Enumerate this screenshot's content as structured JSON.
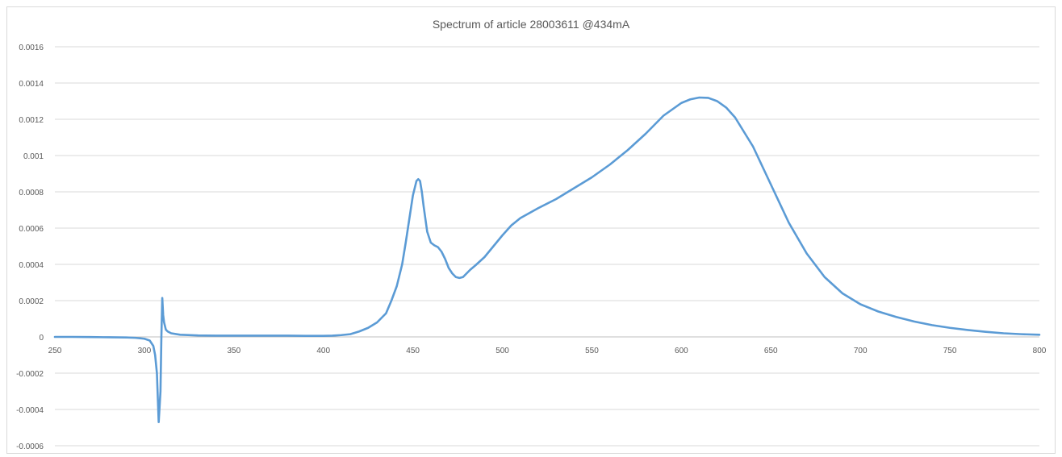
{
  "chart_data": {
    "type": "line",
    "title": "Spectrum of article 28003611   @434mA",
    "xlabel": "",
    "ylabel": "",
    "xlim": [
      250,
      800
    ],
    "ylim": [
      -0.0006,
      0.0016
    ],
    "x_ticks": [
      "250",
      "300",
      "350",
      "400",
      "450",
      "500",
      "550",
      "600",
      "650",
      "700",
      "750",
      "800"
    ],
    "y_ticks": [
      "0.0016",
      "0.0014",
      "0.0012",
      "0.001",
      "0.0008",
      "0.0006",
      "0.0004",
      "0.0002",
      "0",
      "-0.0002",
      "-0.0004",
      "-0.0006"
    ],
    "grid": true,
    "legend": "none",
    "colors": {
      "series": "#5b9bd5",
      "grid": "#d9d9d9",
      "text": "#595959"
    },
    "series": [
      {
        "x": [
          250,
          260,
          270,
          280,
          290,
          295,
          300,
          303,
          305,
          306,
          307,
          308,
          309,
          309.5,
          310,
          310.5,
          311,
          312,
          313,
          315,
          320,
          330,
          340,
          350,
          360,
          370,
          380,
          390,
          400,
          405,
          410,
          415,
          420,
          425,
          430,
          435,
          438,
          441,
          444,
          446,
          448,
          450,
          452,
          453,
          454,
          455,
          456,
          458,
          460,
          462,
          464,
          466,
          468,
          470,
          472,
          474,
          476,
          478,
          480,
          482,
          485,
          490,
          495,
          500,
          505,
          510,
          520,
          530,
          540,
          550,
          560,
          570,
          580,
          585,
          590,
          600,
          605,
          610,
          615,
          620,
          625,
          630,
          640,
          650,
          660,
          670,
          680,
          690,
          700,
          710,
          720,
          730,
          740,
          750,
          760,
          770,
          780,
          790,
          800
        ],
        "values": [
          0.0,
          0.0,
          -1e-06,
          -2e-06,
          -3e-06,
          -5e-06,
          -1e-05,
          -2e-05,
          -5e-05,
          -0.0001,
          -0.0002,
          -0.00047,
          -0.0003,
          0.0,
          0.000215,
          0.00012,
          8e-05,
          4e-05,
          3e-05,
          2e-05,
          1.2e-05,
          8e-06,
          7e-06,
          7e-06,
          7e-06,
          7e-06,
          7e-06,
          6e-06,
          6e-06,
          7e-06,
          1e-05,
          1.5e-05,
          3e-05,
          5e-05,
          8e-05,
          0.00013,
          0.0002,
          0.00028,
          0.0004,
          0.00052,
          0.00065,
          0.00078,
          0.00086,
          0.00087,
          0.00086,
          0.0008,
          0.00072,
          0.00058,
          0.00052,
          0.000505,
          0.000495,
          0.00047,
          0.00043,
          0.00038,
          0.00035,
          0.00033,
          0.000325,
          0.00033,
          0.00035,
          0.00037,
          0.000395,
          0.00044,
          0.0005,
          0.00056,
          0.000615,
          0.000655,
          0.00071,
          0.00076,
          0.00082,
          0.00088,
          0.00095,
          0.00103,
          0.00112,
          0.00117,
          0.00122,
          0.00129,
          0.00131,
          0.00132,
          0.001318,
          0.0013,
          0.001265,
          0.00121,
          0.00105,
          0.00084,
          0.00063,
          0.00046,
          0.00033,
          0.00024,
          0.00018,
          0.00014,
          0.00011,
          8.5e-05,
          6.5e-05,
          5e-05,
          3.8e-05,
          2.8e-05,
          2e-05,
          1.5e-05,
          1.2e-05
        ]
      }
    ]
  }
}
